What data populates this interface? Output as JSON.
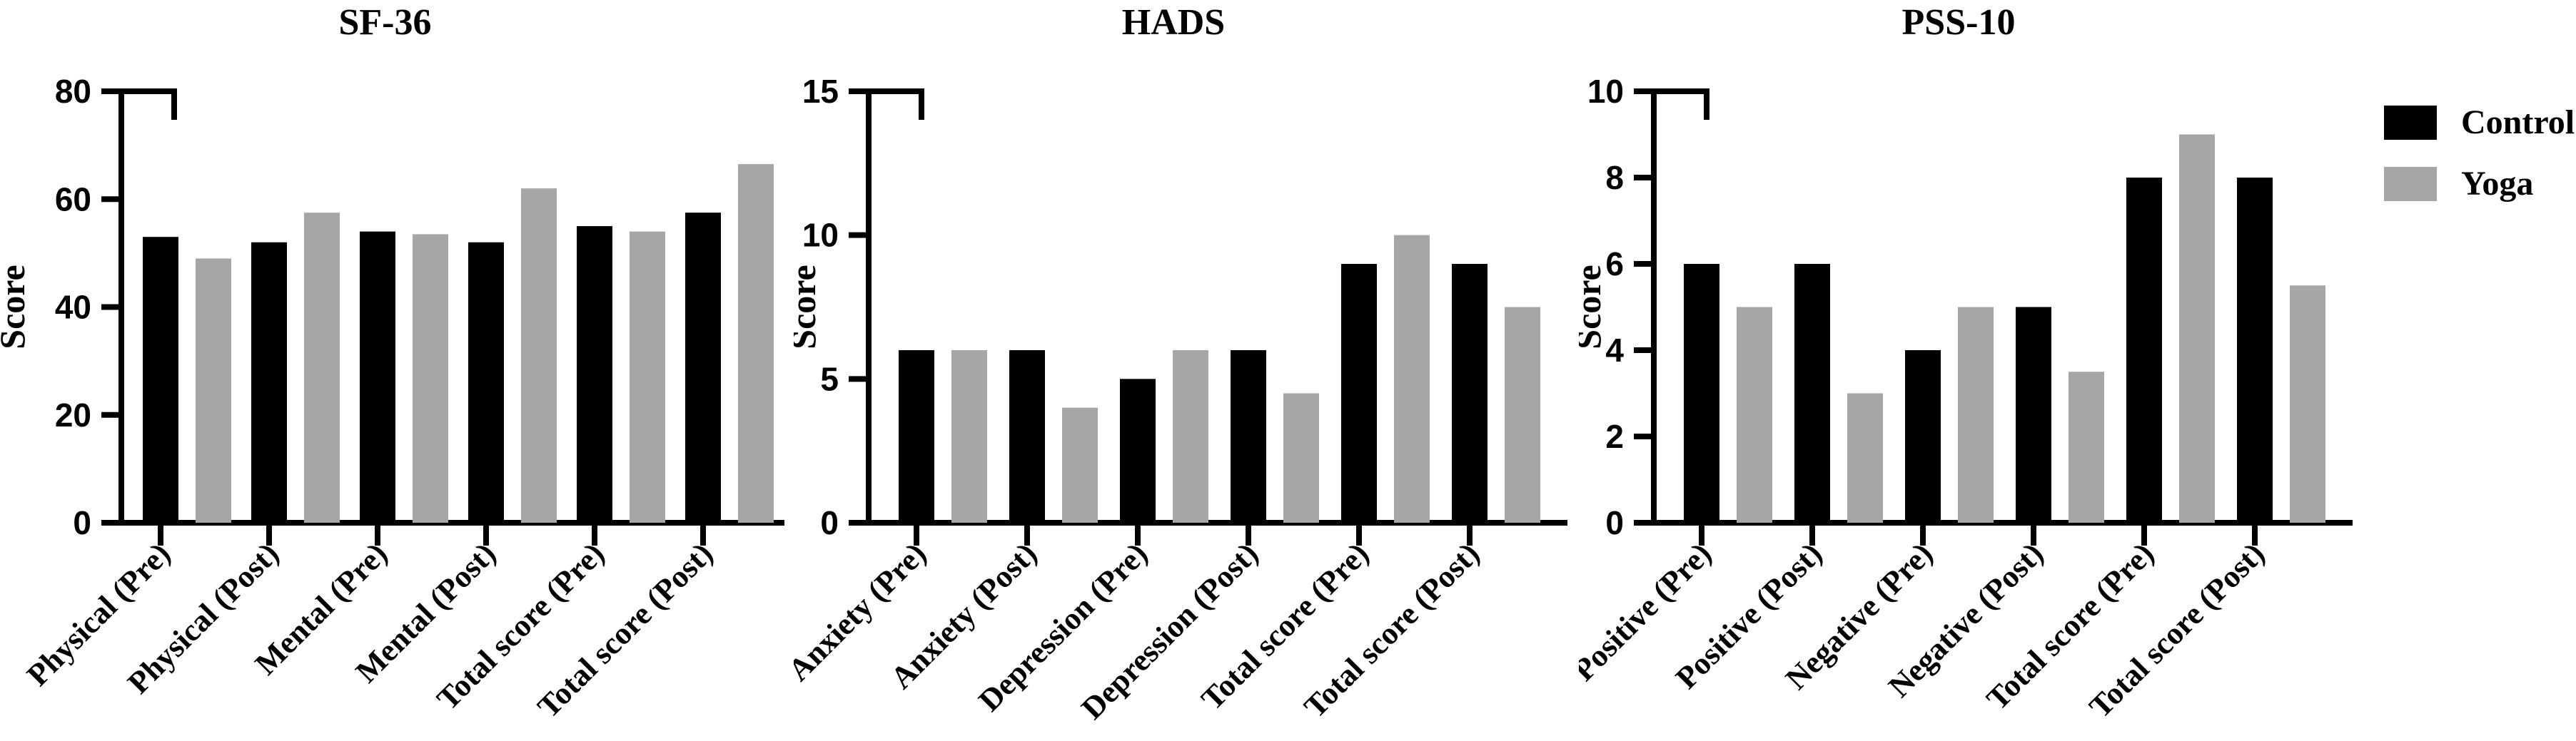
{
  "figure": {
    "background": "#ffffff",
    "series_colors": {
      "control": "#000000",
      "yoga": "#a6a6a6"
    }
  },
  "legend": {
    "position": "top-right",
    "items": [
      {
        "label": "Control",
        "color": "#000000"
      },
      {
        "label": "Yoga",
        "color": "#a6a6a6"
      }
    ]
  },
  "chart_data": [
    {
      "type": "bar",
      "title": "SF-36",
      "xlabel": "",
      "ylabel": "Score",
      "ylim": [
        0,
        80
      ],
      "yticks": [
        0,
        20,
        40,
        60,
        80
      ],
      "grid": false,
      "legend_position": "none",
      "categories": [
        "Physical (Pre)",
        "Physical (Post)",
        "Mental (Pre)",
        "Mental (Post)",
        "Total score (Pre)",
        "Total score (Post)"
      ],
      "series": [
        {
          "name": "Control",
          "color": "#000000",
          "values": [
            53,
            52,
            54,
            52,
            55,
            57.5
          ]
        },
        {
          "name": "Yoga",
          "color": "#a6a6a6",
          "values": [
            49,
            57.5,
            53.5,
            62,
            54,
            66.5
          ]
        }
      ]
    },
    {
      "type": "bar",
      "title": "HADS",
      "xlabel": "",
      "ylabel": "Score",
      "ylim": [
        0,
        15
      ],
      "yticks": [
        0,
        5,
        10,
        15
      ],
      "grid": false,
      "legend_position": "none",
      "categories": [
        "Anxiety (Pre)",
        "Anxiety (Post)",
        "Depression (Pre)",
        "Depression (Post)",
        "Total score (Pre)",
        "Total score (Post)"
      ],
      "series": [
        {
          "name": "Control",
          "color": "#000000",
          "values": [
            6,
            6,
            5,
            6,
            9,
            9
          ]
        },
        {
          "name": "Yoga",
          "color": "#a6a6a6",
          "values": [
            6,
            4,
            6,
            4.5,
            10,
            7.5
          ]
        }
      ]
    },
    {
      "type": "bar",
      "title": "PSS-10",
      "xlabel": "",
      "ylabel": "Score",
      "ylim": [
        0,
        10
      ],
      "yticks": [
        0,
        2,
        4,
        6,
        8,
        10
      ],
      "grid": false,
      "legend_position": "none",
      "categories": [
        "Positive (Pre)",
        "Positive (Post)",
        "Negative (Pre)",
        "Negative (Post)",
        "Total score (Pre)",
        "Total score (Post)"
      ],
      "series": [
        {
          "name": "Control",
          "color": "#000000",
          "values": [
            6,
            6,
            4,
            5,
            8,
            8
          ]
        },
        {
          "name": "Yoga",
          "color": "#a6a6a6",
          "values": [
            5,
            3,
            5,
            3.5,
            9,
            5.5
          ]
        }
      ]
    }
  ]
}
